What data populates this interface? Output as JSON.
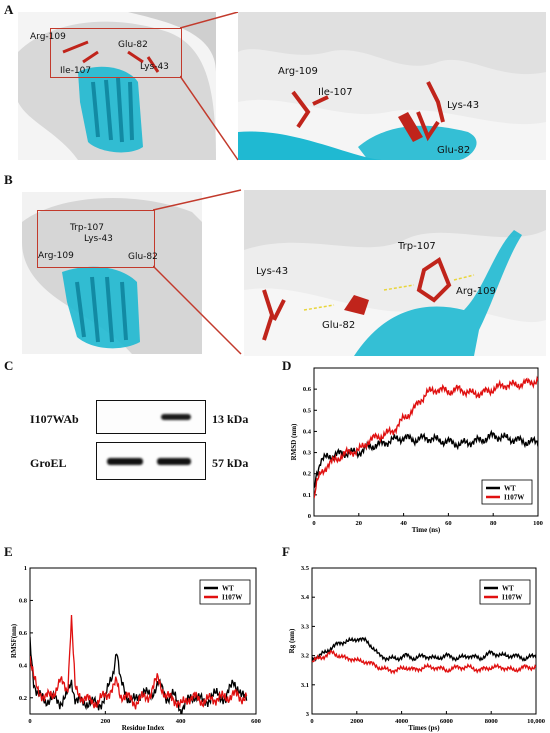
{
  "panels": {
    "A": {
      "letter": "A",
      "left_labels": [
        "Arg-109",
        "Glu-82",
        "Ile-107",
        "Lys-43"
      ],
      "right_labels": [
        "Arg-109",
        "Ile-107",
        "Lys-43",
        "Glu-82"
      ]
    },
    "B": {
      "letter": "B",
      "left_labels": [
        "Trp-107",
        "Lys-43",
        "Arg-109",
        "Glu-82"
      ],
      "right_labels": [
        "Trp-107",
        "Lys-43",
        "Arg-109",
        "Glu-82"
      ]
    },
    "C": {
      "letter": "C",
      "rows": [
        {
          "label": "I107WAb",
          "size": "13 kDa"
        },
        {
          "label": "GroEL",
          "size": "57 kDa"
        }
      ]
    },
    "D": {
      "letter": "D"
    },
    "E": {
      "letter": "E"
    },
    "F": {
      "letter": "F"
    }
  },
  "chart_data": [
    {
      "id": "D",
      "type": "line",
      "xlabel": "Time (ns)",
      "ylabel": "RMSD (nm)",
      "xlim": [
        0,
        100
      ],
      "ylim": [
        0,
        0.7
      ],
      "xticks": [
        0,
        20,
        40,
        60,
        80,
        100
      ],
      "yticks": [
        0,
        0.1,
        0.2,
        0.3,
        0.4,
        0.5,
        0.6
      ],
      "legend_position": "bottom-right",
      "series": [
        {
          "name": "WT",
          "color": "#000000",
          "x": [
            0,
            1,
            3,
            6,
            10,
            15,
            20,
            25,
            30,
            35,
            40,
            45,
            50,
            55,
            60,
            65,
            70,
            75,
            80,
            85,
            90,
            95,
            100
          ],
          "y": [
            0.12,
            0.2,
            0.26,
            0.28,
            0.29,
            0.3,
            0.3,
            0.33,
            0.34,
            0.36,
            0.37,
            0.36,
            0.37,
            0.36,
            0.35,
            0.34,
            0.35,
            0.36,
            0.38,
            0.37,
            0.36,
            0.35,
            0.35
          ]
        },
        {
          "name": "I107W",
          "color": "#e01010",
          "x": [
            0,
            1,
            3,
            6,
            10,
            15,
            20,
            25,
            30,
            35,
            40,
            45,
            50,
            55,
            60,
            65,
            70,
            75,
            80,
            85,
            90,
            95,
            100
          ],
          "y": [
            0.08,
            0.15,
            0.2,
            0.24,
            0.27,
            0.3,
            0.31,
            0.36,
            0.38,
            0.4,
            0.46,
            0.51,
            0.58,
            0.6,
            0.59,
            0.6,
            0.58,
            0.58,
            0.6,
            0.62,
            0.62,
            0.63,
            0.64
          ]
        }
      ]
    },
    {
      "id": "E",
      "type": "line",
      "xlabel": "Residue Index",
      "ylabel": "RMSF(nm)",
      "xlim": [
        0,
        600
      ],
      "ylim": [
        0.1,
        1.0
      ],
      "xticks": [
        0,
        200,
        400,
        600
      ],
      "yticks": [
        0.2,
        0.4,
        0.6,
        0.8,
        1.0
      ],
      "legend_position": "top-right",
      "series": [
        {
          "name": "WT",
          "color": "#000000",
          "x": [
            0,
            10,
            20,
            40,
            60,
            80,
            100,
            110,
            120,
            140,
            160,
            180,
            200,
            220,
            230,
            240,
            260,
            280,
            300,
            320,
            340,
            360,
            380,
            400,
            420,
            440,
            460,
            480,
            500,
            520,
            540,
            560,
            575
          ],
          "y": [
            0.55,
            0.3,
            0.22,
            0.18,
            0.2,
            0.17,
            0.22,
            0.3,
            0.2,
            0.16,
            0.18,
            0.15,
            0.2,
            0.35,
            0.5,
            0.3,
            0.2,
            0.18,
            0.25,
            0.2,
            0.3,
            0.2,
            0.22,
            0.13,
            0.18,
            0.22,
            0.17,
            0.2,
            0.23,
            0.18,
            0.32,
            0.2,
            0.22
          ]
        },
        {
          "name": "I107W",
          "color": "#e01010",
          "x": [
            0,
            10,
            20,
            40,
            60,
            80,
            100,
            110,
            120,
            140,
            160,
            180,
            200,
            220,
            230,
            240,
            260,
            280,
            300,
            320,
            340,
            360,
            380,
            400,
            420,
            440,
            460,
            480,
            500,
            520,
            540,
            560,
            575
          ],
          "y": [
            0.45,
            0.32,
            0.25,
            0.2,
            0.22,
            0.3,
            0.25,
            0.7,
            0.25,
            0.2,
            0.18,
            0.17,
            0.22,
            0.25,
            0.3,
            0.22,
            0.2,
            0.17,
            0.2,
            0.22,
            0.33,
            0.2,
            0.2,
            0.15,
            0.2,
            0.2,
            0.18,
            0.19,
            0.2,
            0.2,
            0.22,
            0.2,
            0.21
          ]
        }
      ]
    },
    {
      "id": "F",
      "type": "line",
      "xlabel": "Times (ps)",
      "ylabel": "Rg (nm)",
      "xlim": [
        0,
        10000
      ],
      "ylim": [
        3.0,
        3.5
      ],
      "xticks": [
        0,
        2000,
        4000,
        6000,
        8000,
        10000
      ],
      "yticks": [
        3.0,
        3.1,
        3.2,
        3.3,
        3.4,
        3.5
      ],
      "legend_position": "top-right",
      "series": [
        {
          "name": "WT",
          "color": "#000000",
          "x": [
            0,
            300,
            600,
            900,
            1200,
            1500,
            1800,
            2100,
            2400,
            2700,
            3000,
            3400,
            3800,
            4200,
            4600,
            5000,
            5500,
            6000,
            6500,
            7000,
            7500,
            8000,
            8500,
            9000,
            9500,
            10000
          ],
          "y": [
            3.19,
            3.2,
            3.21,
            3.23,
            3.24,
            3.25,
            3.25,
            3.26,
            3.25,
            3.23,
            3.2,
            3.19,
            3.19,
            3.2,
            3.19,
            3.2,
            3.19,
            3.2,
            3.19,
            3.2,
            3.19,
            3.21,
            3.2,
            3.2,
            3.19,
            3.2
          ]
        },
        {
          "name": "I107W",
          "color": "#e01010",
          "x": [
            0,
            300,
            600,
            900,
            1200,
            1500,
            1800,
            2100,
            2400,
            2700,
            3000,
            3400,
            3800,
            4200,
            4600,
            5000,
            5500,
            6000,
            6500,
            7000,
            7500,
            8000,
            8500,
            9000,
            9500,
            10000
          ],
          "y": [
            3.18,
            3.19,
            3.2,
            3.21,
            3.2,
            3.19,
            3.19,
            3.18,
            3.18,
            3.17,
            3.16,
            3.15,
            3.15,
            3.16,
            3.15,
            3.16,
            3.16,
            3.15,
            3.16,
            3.16,
            3.15,
            3.16,
            3.16,
            3.15,
            3.16,
            3.16
          ]
        }
      ]
    }
  ]
}
